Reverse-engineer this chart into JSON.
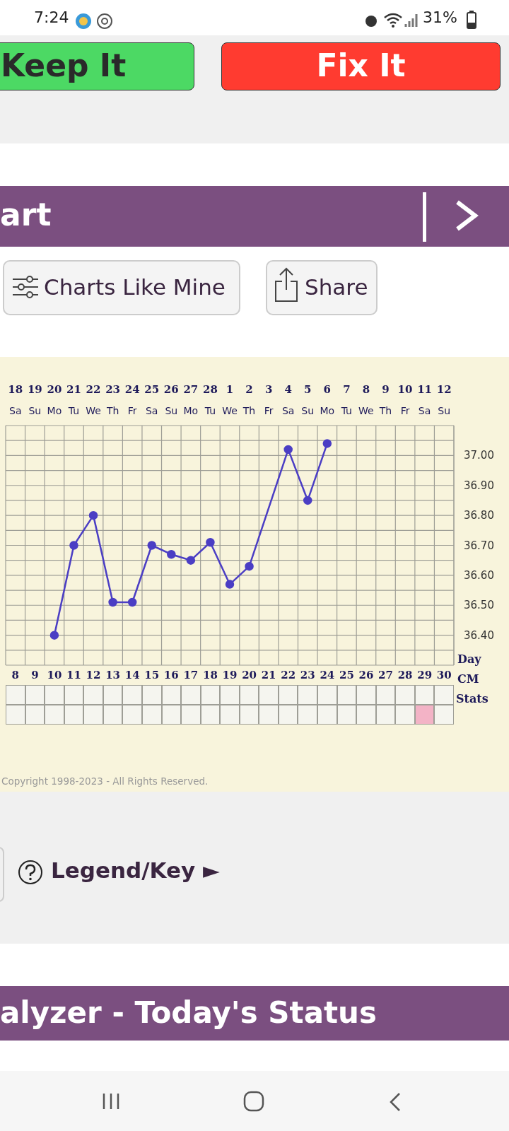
{
  "chart_data": {
    "type": "line",
    "title": "art",
    "categories": [
      "8",
      "9",
      "10",
      "11",
      "12",
      "13",
      "14",
      "15",
      "16",
      "17",
      "18",
      "19",
      "20",
      "21",
      "22",
      "23",
      "24",
      "25",
      "26",
      "27",
      "28",
      "29",
      "30"
    ],
    "series": [
      {
        "color": "#4b3ec4",
        "values": [
          null,
          null,
          36.4,
          36.7,
          36.8,
          36.51,
          36.51,
          36.7,
          36.67,
          36.65,
          36.71,
          36.57,
          36.63,
          null,
          37.02,
          36.85,
          37.04,
          null,
          null,
          null,
          null,
          null,
          null
        ]
      }
    ],
    "ylim": [
      36.3,
      37.1
    ],
    "yticks": [
      {
        "value": 36.3,
        "label": null
      },
      {
        "value": 36.35,
        "label": null
      },
      {
        "value": 36.4,
        "label": "36.40"
      },
      {
        "value": 36.45,
        "label": null
      },
      {
        "value": 36.5,
        "label": "36.50"
      },
      {
        "value": 36.55,
        "label": null
      },
      {
        "value": 36.6,
        "label": "36.60"
      },
      {
        "value": 36.65,
        "label": null
      },
      {
        "value": 36.7,
        "label": "36.70"
      },
      {
        "value": 36.75,
        "label": null
      },
      {
        "value": 36.8,
        "label": "36.80"
      },
      {
        "value": 36.85,
        "label": null
      },
      {
        "value": 36.9,
        "label": "36.90"
      },
      {
        "value": 36.95,
        "label": null
      },
      {
        "value": 37.0,
        "label": "37.00"
      },
      {
        "value": 37.05,
        "label": null
      },
      {
        "value": 37.1,
        "label": null
      }
    ],
    "grid": true,
    "marker": "circle",
    "line_style": "solid",
    "legend": false,
    "annotations": [
      "18 19 20 21 22 23 24 25 26 27 28 1 2 3 4 5 6 7 8 9 10 11 12",
      "Sa Su Mo Tu We Th Fr Sa Su Mo Tu We Th Fr Sa Su Mo Tu We Th Fr Sa Su",
      "Day",
      "CM",
      "Stats",
      "Copyright 1998-2023 - All Rights Reserved.",
      "7:24",
      "31%",
      "Keep It",
      "Fix It",
      "Charts Like Mine",
      "Share",
      "Legend/Key ►",
      "alyzer - Today's Status"
    ]
  }
}
